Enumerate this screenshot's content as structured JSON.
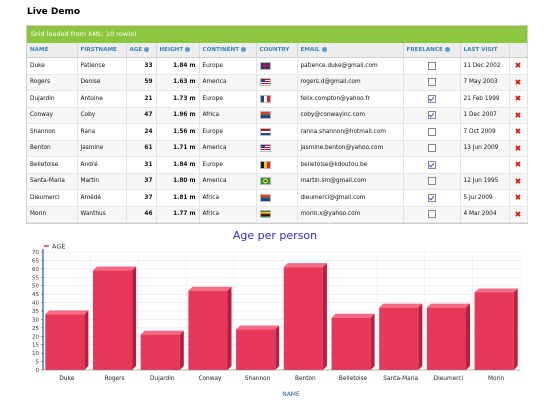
{
  "page": {
    "title": "Live Demo"
  },
  "grid": {
    "status": "Grid loaded from XML: 10 row(s)",
    "columns": [
      "NAME",
      "FIRSTNAME",
      "AGE",
      "HEIGHT",
      "CONTINENT",
      "COUNTRY",
      "EMAIL",
      "FREELANCE",
      "LAST VISIT"
    ],
    "rows": [
      {
        "name": "Duke",
        "firstname": "Patience",
        "age": "33",
        "height": "1.84 m",
        "continent": "Europe",
        "flag": "gb-flag-icon",
        "email": "patience.duke@gmail.com",
        "freelance": false,
        "last_visit": "11 Dec 2002"
      },
      {
        "name": "Rogers",
        "firstname": "Denise",
        "age": "59",
        "height": "1.63 m",
        "continent": "America",
        "flag": "us-flag-icon",
        "email": "rogers.d@gmail.com",
        "freelance": false,
        "last_visit": "7 May 2003"
      },
      {
        "name": "Dujardin",
        "firstname": "Antoine",
        "age": "21",
        "height": "1.73 m",
        "continent": "Europe",
        "flag": "fr-flag-icon",
        "email": "felix.compton@yahoo.fr",
        "freelance": true,
        "last_visit": "21 Feb 1999"
      },
      {
        "name": "Conway",
        "firstname": "Coby",
        "age": "47",
        "height": "1.96 m",
        "continent": "Africa",
        "flag": "za-flag-icon",
        "email": "coby@conwayinc.com",
        "freelance": true,
        "last_visit": "1 Dec 2007"
      },
      {
        "name": "Shannon",
        "firstname": "Rana",
        "age": "24",
        "height": "1.56 m",
        "continent": "Europe",
        "flag": "nl-flag-icon",
        "email": "ranna.shannon@hotmail.com",
        "freelance": false,
        "last_visit": "7 Oct 2009"
      },
      {
        "name": "Benton",
        "firstname": "Jasmine",
        "age": "61",
        "height": "1.71 m",
        "continent": "America",
        "flag": "us-flag-icon",
        "email": "jasmine.benton@yahoo.com",
        "freelance": false,
        "last_visit": "13 Jun 2009"
      },
      {
        "name": "Belletoise",
        "firstname": "André",
        "age": "31",
        "height": "1.84 m",
        "continent": "Europe",
        "flag": "be-flag-icon",
        "email": "belletoise@kdoutou.be",
        "freelance": true,
        "last_visit": ""
      },
      {
        "name": "Santa-Maria",
        "firstname": "Martin",
        "age": "37",
        "height": "1.80 m",
        "continent": "America",
        "flag": "br-flag-icon",
        "email": "martin.sm@gmail.com",
        "freelance": false,
        "last_visit": "12 Jun 1995"
      },
      {
        "name": "Dieumerci",
        "firstname": "Amédé",
        "age": "37",
        "height": "1.81 m",
        "continent": "Africa",
        "flag": "za-flag-icon",
        "email": "dieumerci@gmail.com",
        "freelance": true,
        "last_visit": "5 Jul 2009"
      },
      {
        "name": "Morin",
        "firstname": "Wanthus",
        "age": "46",
        "height": "1.77 m",
        "continent": "Africa",
        "flag": "zw-flag-icon",
        "email": "morin.x@yahoo.com",
        "freelance": false,
        "last_visit": "4 Mar 2004"
      }
    ]
  },
  "chart_data": {
    "type": "bar",
    "title": "Age per person",
    "xlabel": "NAME",
    "ylabel": "",
    "legend": "AGE",
    "categories": [
      "Duke",
      "Rogers",
      "Dujardin",
      "Conway",
      "Shannon",
      "Benton",
      "Belletoise",
      "Santa-Maria",
      "Dieumerci",
      "Morin"
    ],
    "series": [
      {
        "name": "AGE",
        "values": [
          33,
          59,
          21,
          47,
          24,
          61,
          31,
          37,
          37,
          46
        ]
      }
    ],
    "ylim": [
      0,
      70
    ],
    "yticks": [
      0,
      5,
      10,
      15,
      20,
      25,
      30,
      35,
      40,
      45,
      50,
      55,
      60,
      65,
      70
    ],
    "grid": true,
    "colors": {
      "bar": "#e8385a",
      "bar_top": "#f56a84",
      "bar_side": "#b5203d",
      "title": "#2b2bd6",
      "axis": "#1f5aa8"
    }
  }
}
